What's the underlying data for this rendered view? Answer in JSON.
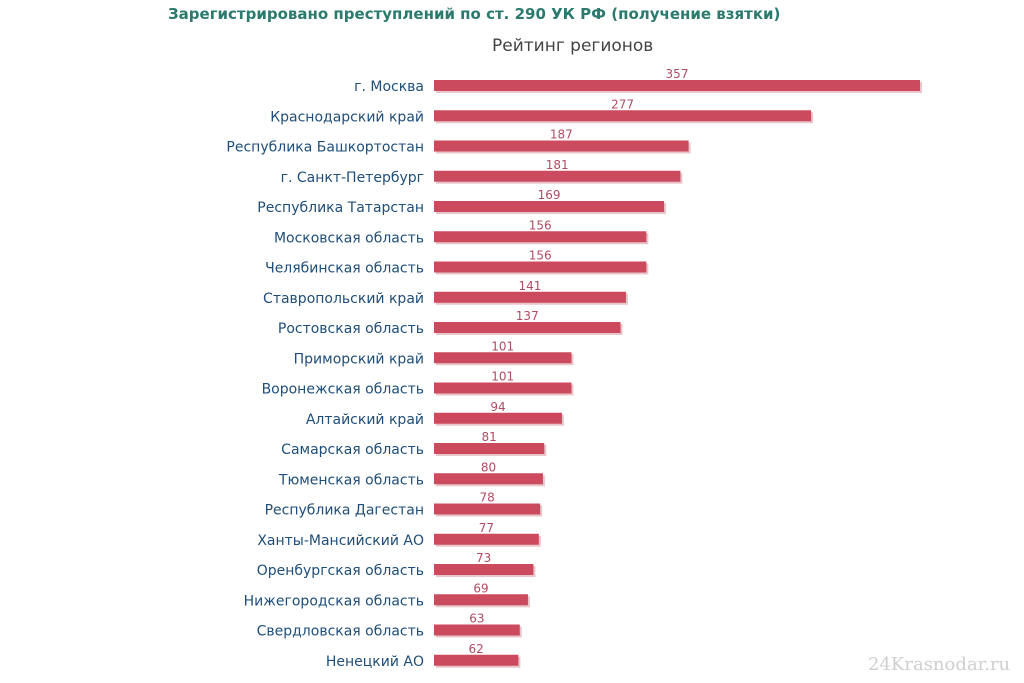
{
  "header": {
    "title": "Зарегистрировано преступлений по ст. 290 УК РФ (получение взятки)"
  },
  "watermark": "24Krasnodar.ru",
  "colors": {
    "bar": "#cc4a5e",
    "bar_shadow": "#e8c6cb",
    "title": "#2a7a6e",
    "category_text": "#1f4e79",
    "value_text": "#b24c63"
  },
  "chart_data": {
    "type": "bar",
    "orientation": "horizontal",
    "title": "Рейтинг регионов",
    "categories": [
      "г. Москва",
      "Краснодарский край",
      "Республика Башкортостан",
      "г. Санкт-Петербург",
      "Республика Татарстан",
      "Московская область",
      "Челябинская область",
      "Ставропольский край",
      "Ростовская область",
      "Приморский край",
      "Воронежская область",
      "Алтайский край",
      "Самарская область",
      "Тюменская область",
      "Республика Дагестан",
      "Ханты-Мансийский АО",
      "Оренбургская область",
      "Нижегородская область",
      "Свердловская область",
      "Ненецкий АО"
    ],
    "values": [
      357,
      277,
      187,
      181,
      169,
      156,
      156,
      141,
      137,
      101,
      101,
      94,
      81,
      80,
      78,
      77,
      73,
      69,
      63,
      62
    ],
    "xlim": [
      0,
      357
    ],
    "grid": false,
    "legend": "none"
  }
}
